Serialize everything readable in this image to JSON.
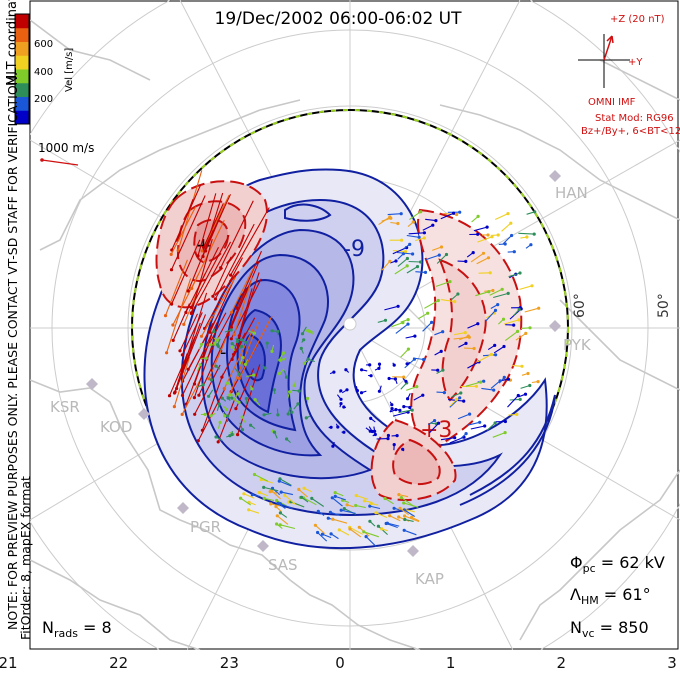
{
  "title": "19/Dec/2002 06:00-06:02 UT",
  "coords_label": "MLT coordinates",
  "note": "NOTE: FOR PREVIEW PURPOSES ONLY. PLEASE CONTACT VT-SD STAFF FOR VERIFICATION.",
  "fit_order": "FitOrder: 8, mapEX format",
  "colorbar": {
    "label": "Vel [m/s]",
    "ticks": [
      "600",
      "400",
      "200"
    ],
    "colors": [
      "#0000c8",
      "#1a56d8",
      "#2e8e5a",
      "#7ecb2a",
      "#f0d020",
      "#f0a020",
      "#e86010",
      "#c00000"
    ]
  },
  "scale_vector": {
    "label": "1000 m/s",
    "color": "#d01010"
  },
  "imf": {
    "z_label": "+Z (20 nT)",
    "y_label": "+Y",
    "source": "OMNI IMF",
    "model": "Stat Mod: RG96",
    "condition": "Bz+/By+, 6<BT<12",
    "color": "#d01010"
  },
  "sites": [
    "HAN",
    "PYK",
    "KSR",
    "KOD",
    "PGR",
    "SAS",
    "KAP"
  ],
  "lat_labels": [
    "60°",
    "50°"
  ],
  "contour_labels": [
    "-9",
    "+3",
    "-"
  ],
  "focus_marks": [
    "+"
  ],
  "stats": {
    "phi_sym": "Φ",
    "phi_sub": "pc",
    "phi_val": " = 62 kV",
    "lam_sym": "Λ",
    "lam_sub": "HM",
    "lam_val": " = 61°",
    "nvc_sym": "N",
    "nvc_sub": "vc",
    "nvc_val": " = 850",
    "nrads_sym": "N",
    "nrads_sub": "rads",
    "nrads_val": " = 8"
  },
  "mlt_ticks": [
    "21",
    "22",
    "23",
    "0",
    "1",
    "2",
    "3"
  ]
}
